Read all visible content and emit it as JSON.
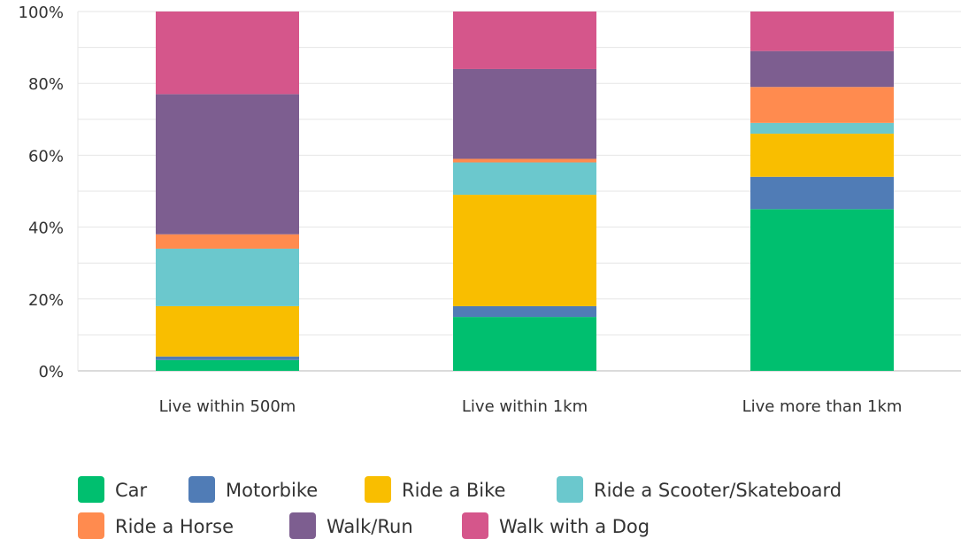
{
  "chart_data": {
    "type": "bar",
    "stacked": true,
    "categories": [
      "Live within 500m",
      "Live within 1km",
      "Live more than 1km"
    ],
    "y_ticks": [
      "0%",
      "20%",
      "40%",
      "60%",
      "80%",
      "100%"
    ],
    "ylim": [
      0,
      100
    ],
    "grid": true,
    "legend_position": "bottom",
    "series": [
      {
        "name": "Car",
        "color": "#00BF6F",
        "values": [
          3,
          15,
          45
        ]
      },
      {
        "name": "Motorbike",
        "color": "#507CB6",
        "values": [
          1,
          3,
          9
        ]
      },
      {
        "name": "Ride a Bike",
        "color": "#F9BE00",
        "values": [
          14,
          31,
          12
        ]
      },
      {
        "name": "Ride a Scooter/Skateboard",
        "color": "#6BC8CD",
        "values": [
          16,
          9,
          3
        ]
      },
      {
        "name": "Ride a Horse",
        "color": "#FF8B4F",
        "values": [
          4,
          1,
          10
        ]
      },
      {
        "name": "Walk/Run",
        "color": "#7D5E90",
        "values": [
          39,
          25,
          10
        ]
      },
      {
        "name": "Walk with a Dog",
        "color": "#D5568B",
        "values": [
          23,
          16,
          11
        ]
      }
    ]
  }
}
